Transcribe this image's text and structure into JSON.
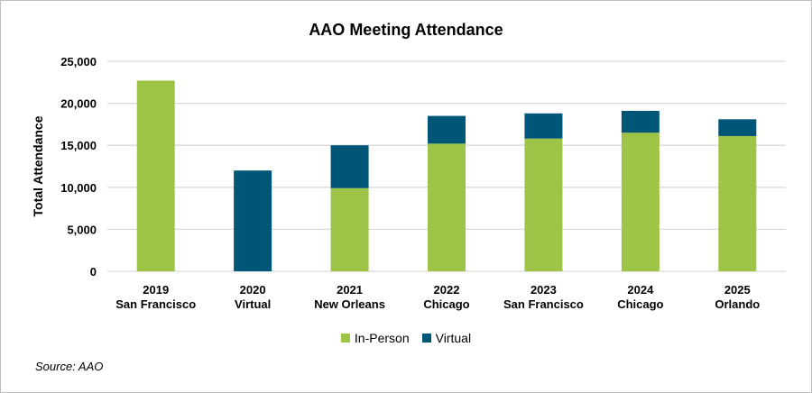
{
  "chart_data": {
    "type": "bar",
    "stacked": true,
    "title": "AAO Meeting Attendance",
    "ylabel": "Total Attendance",
    "xlabel": "",
    "ylim": [
      0,
      25000
    ],
    "yticks": [
      "0",
      "5,000",
      "10,000",
      "15,000",
      "20,000",
      "25,000"
    ],
    "grid": true,
    "legend_position": "bottom",
    "categories": [
      [
        "2019",
        "San Francisco"
      ],
      [
        "2020",
        "Virtual"
      ],
      [
        "2021",
        "New Orleans"
      ],
      [
        "2022",
        "Chicago"
      ],
      [
        "2023",
        "San Francisco"
      ],
      [
        "2024",
        "Chicago"
      ],
      [
        "2025",
        "Orlando"
      ]
    ],
    "series": [
      {
        "name": "In-Person",
        "color": "#9dc447",
        "values": [
          22700,
          0,
          9900,
          15200,
          15800,
          16500,
          16100
        ]
      },
      {
        "name": "Virtual",
        "color": "#005677",
        "values": [
          0,
          12000,
          5100,
          3300,
          3000,
          2600,
          2000
        ]
      }
    ],
    "source": "Source: AAO"
  }
}
